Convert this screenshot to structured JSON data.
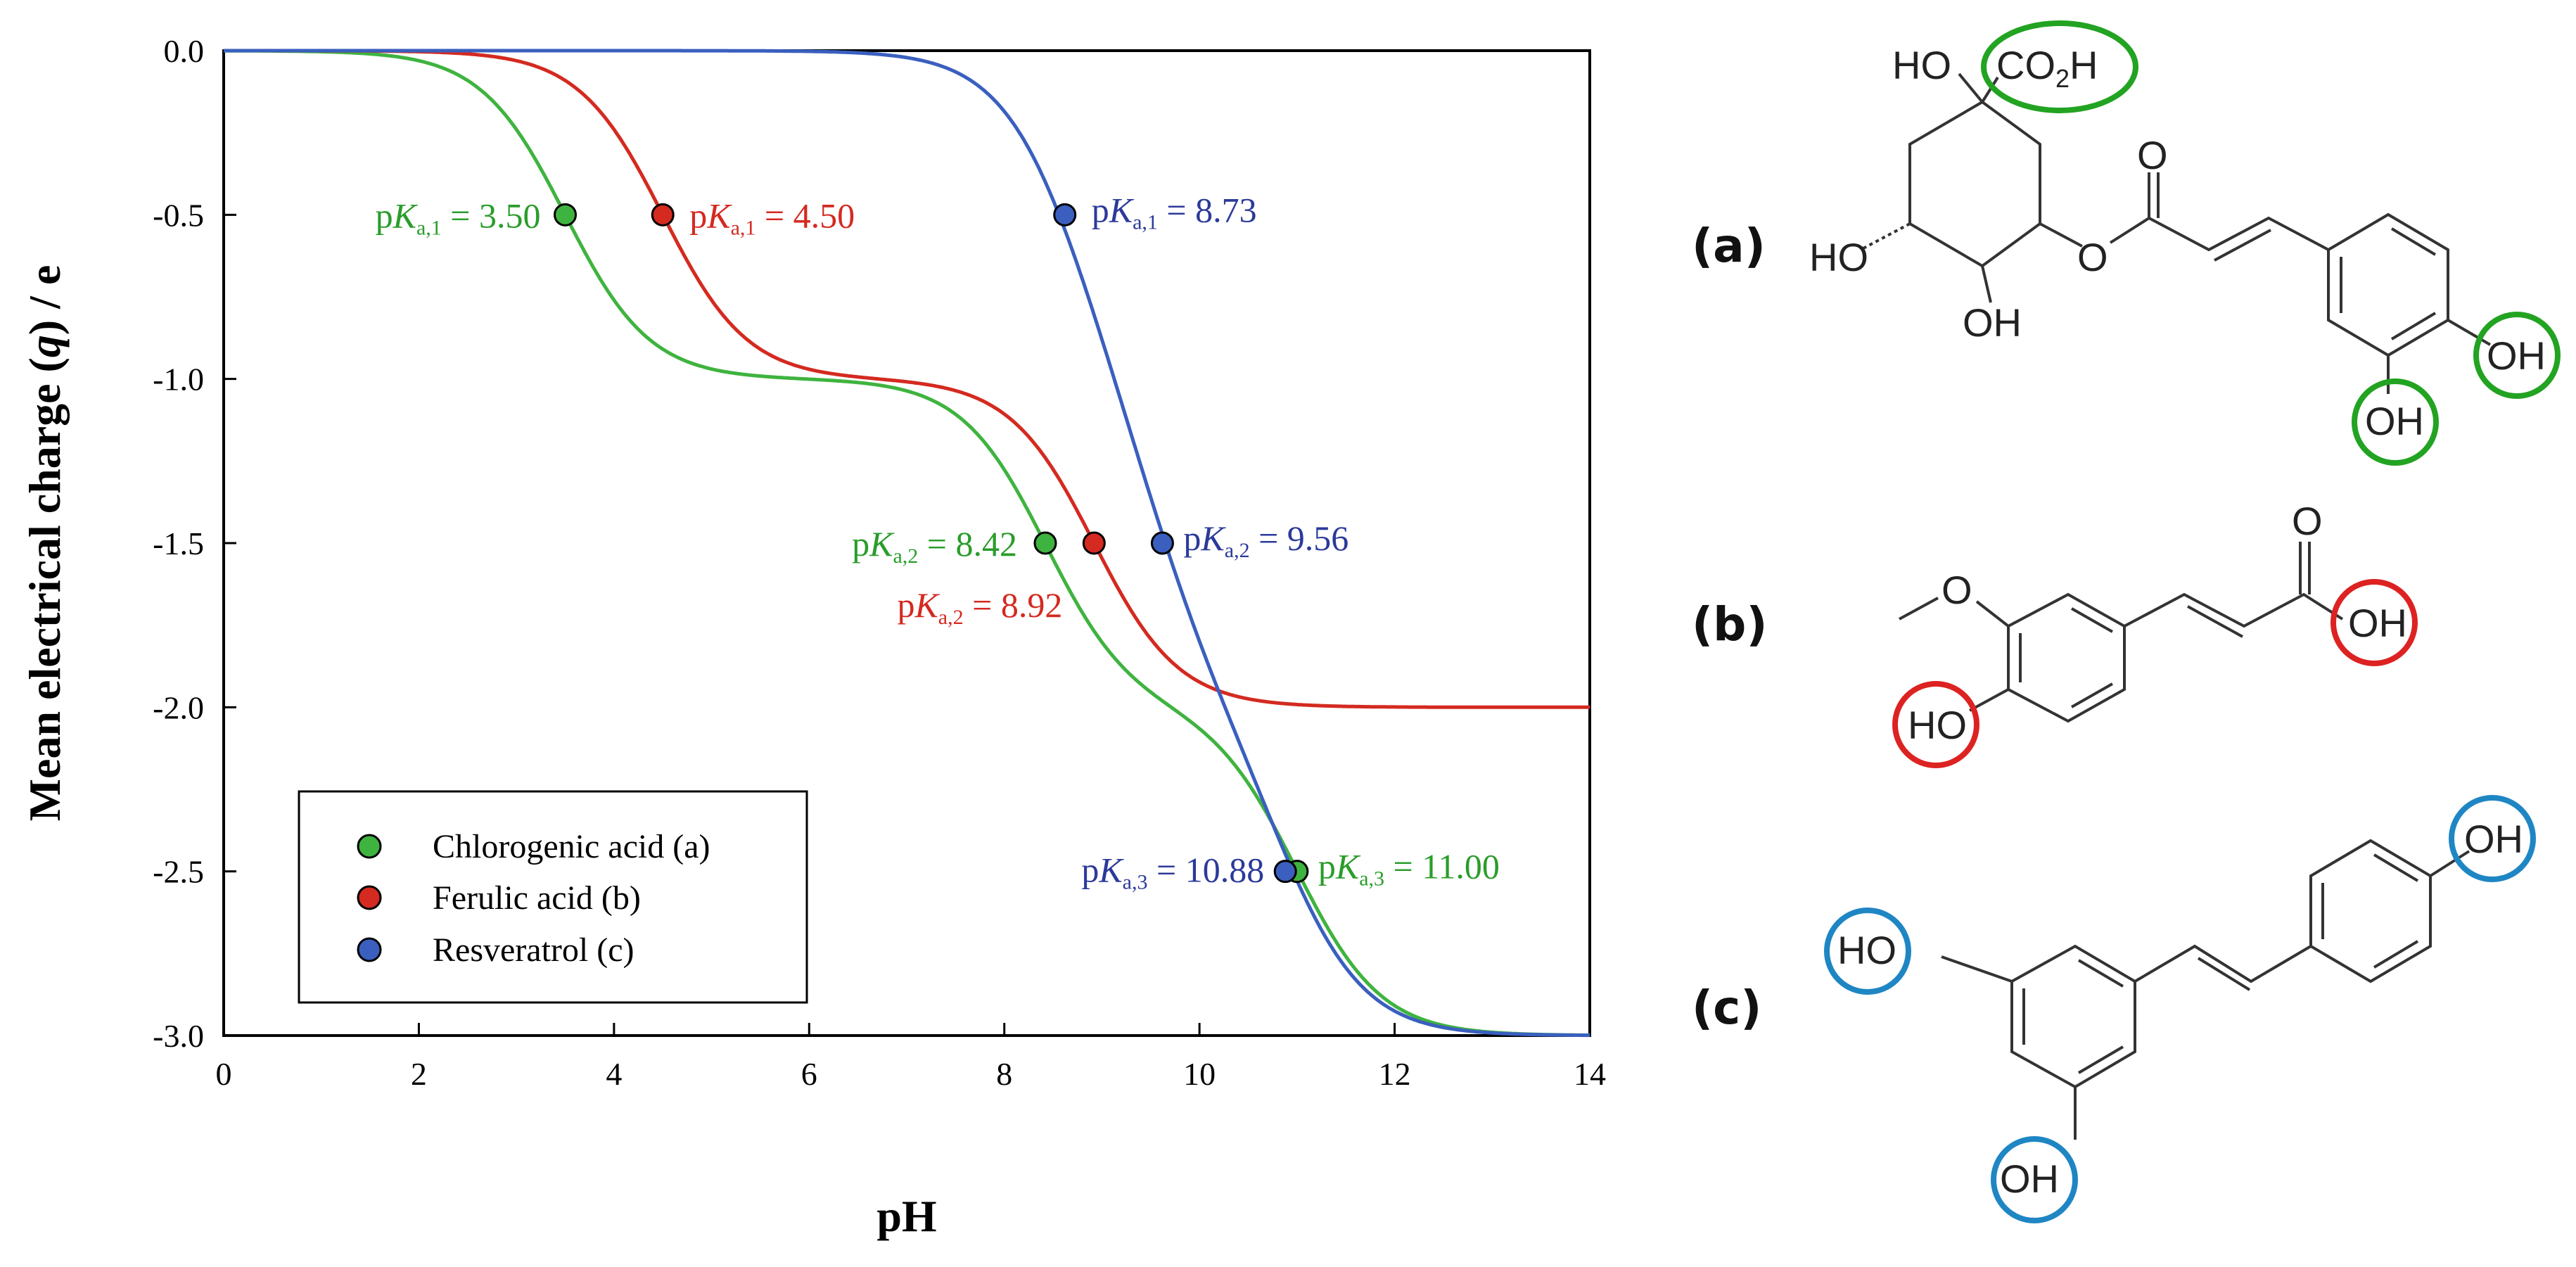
{
  "chart_data": {
    "type": "line",
    "xlabel": "pH",
    "ylabel_main": "Mean electrical charge (",
    "ylabel_var": "q",
    "ylabel_end": ") / e",
    "xlim": [
      0,
      14
    ],
    "ylim": [
      -3.0,
      0.0
    ],
    "xticks": [
      "0",
      "2",
      "4",
      "6",
      "8",
      "10",
      "12",
      "14"
    ],
    "xtick_values": [
      0,
      2,
      4,
      6,
      8,
      10,
      12,
      14
    ],
    "yticks": [
      "0.0",
      "-0.5",
      "-1.0",
      "-1.5",
      "-2.0",
      "-2.5",
      "-3.0"
    ],
    "ytick_values": [
      0.0,
      -0.5,
      -1.0,
      -1.5,
      -2.0,
      -2.5,
      -3.0
    ],
    "series": [
      {
        "name": "Chlorogenic acid (a)",
        "color": "#3fb33f",
        "label_color": "#2a9d2a",
        "pka": [
          3.5,
          8.42,
          11.0
        ],
        "pka_labels": [
          {
            "sub": "a,1",
            "text": "= 3.50",
            "x": 3.5,
            "y": -0.5
          },
          {
            "sub": "a,2",
            "text": "= 8.42",
            "x": 8.42,
            "y": -1.5
          },
          {
            "sub": "a,3",
            "text": "= 11.00",
            "x": 11.0,
            "y": -2.5
          }
        ]
      },
      {
        "name": "Ferulic acid (b)",
        "color": "#d42a20",
        "label_color": "#d42a20",
        "pka": [
          4.5,
          8.92
        ],
        "pka_labels": [
          {
            "sub": "a,1",
            "text": "= 4.50",
            "x": 4.5,
            "y": -0.5
          },
          {
            "sub": "a,2",
            "text": "= 8.92",
            "x": 8.92,
            "y": -1.5
          }
        ]
      },
      {
        "name": "Resveratrol (c)",
        "color": "#3a5fbf",
        "label_color": "#2b3a9a",
        "pka": [
          8.73,
          9.56,
          10.88
        ],
        "pka_labels": [
          {
            "sub": "a,1",
            "text": "= 8.73",
            "x": 8.62,
            "y": -0.5
          },
          {
            "sub": "a,2",
            "text": "= 9.56",
            "x": 9.62,
            "y": -1.5
          },
          {
            "sub": "a,3",
            "text": "= 10.88",
            "x": 10.88,
            "y": -2.5
          }
        ]
      }
    ],
    "legend": {
      "position": "bottom-left",
      "entries": [
        "Chlorogenic acid (a)",
        "Ferulic acid (b)",
        "Resveratrol (c)"
      ]
    }
  },
  "structures": {
    "a": {
      "tag": "(a)",
      "labels": {
        "ho_top": "HO",
        "co2h": "CO",
        "co2h_sub": "2",
        "co2h_end": "H",
        "o_carbonyl": "O",
        "ho_left": "HO",
        "oh_bottom": "OH",
        "o_ester": "O",
        "oh_ring_right": "OH",
        "oh_ring_bottom": "OH"
      },
      "highlight_color": "#22a322"
    },
    "b": {
      "tag": "(b)",
      "labels": {
        "o_methoxy": "O",
        "o_carbonyl": "O",
        "oh_acid": "OH",
        "ho_phenol": "HO"
      },
      "highlight_color": "#dd2222"
    },
    "c": {
      "tag": "(c)",
      "labels": {
        "oh_para": "OH",
        "ho_meta1": "HO",
        "oh_meta2": "OH"
      },
      "highlight_color": "#1f86c4"
    }
  }
}
